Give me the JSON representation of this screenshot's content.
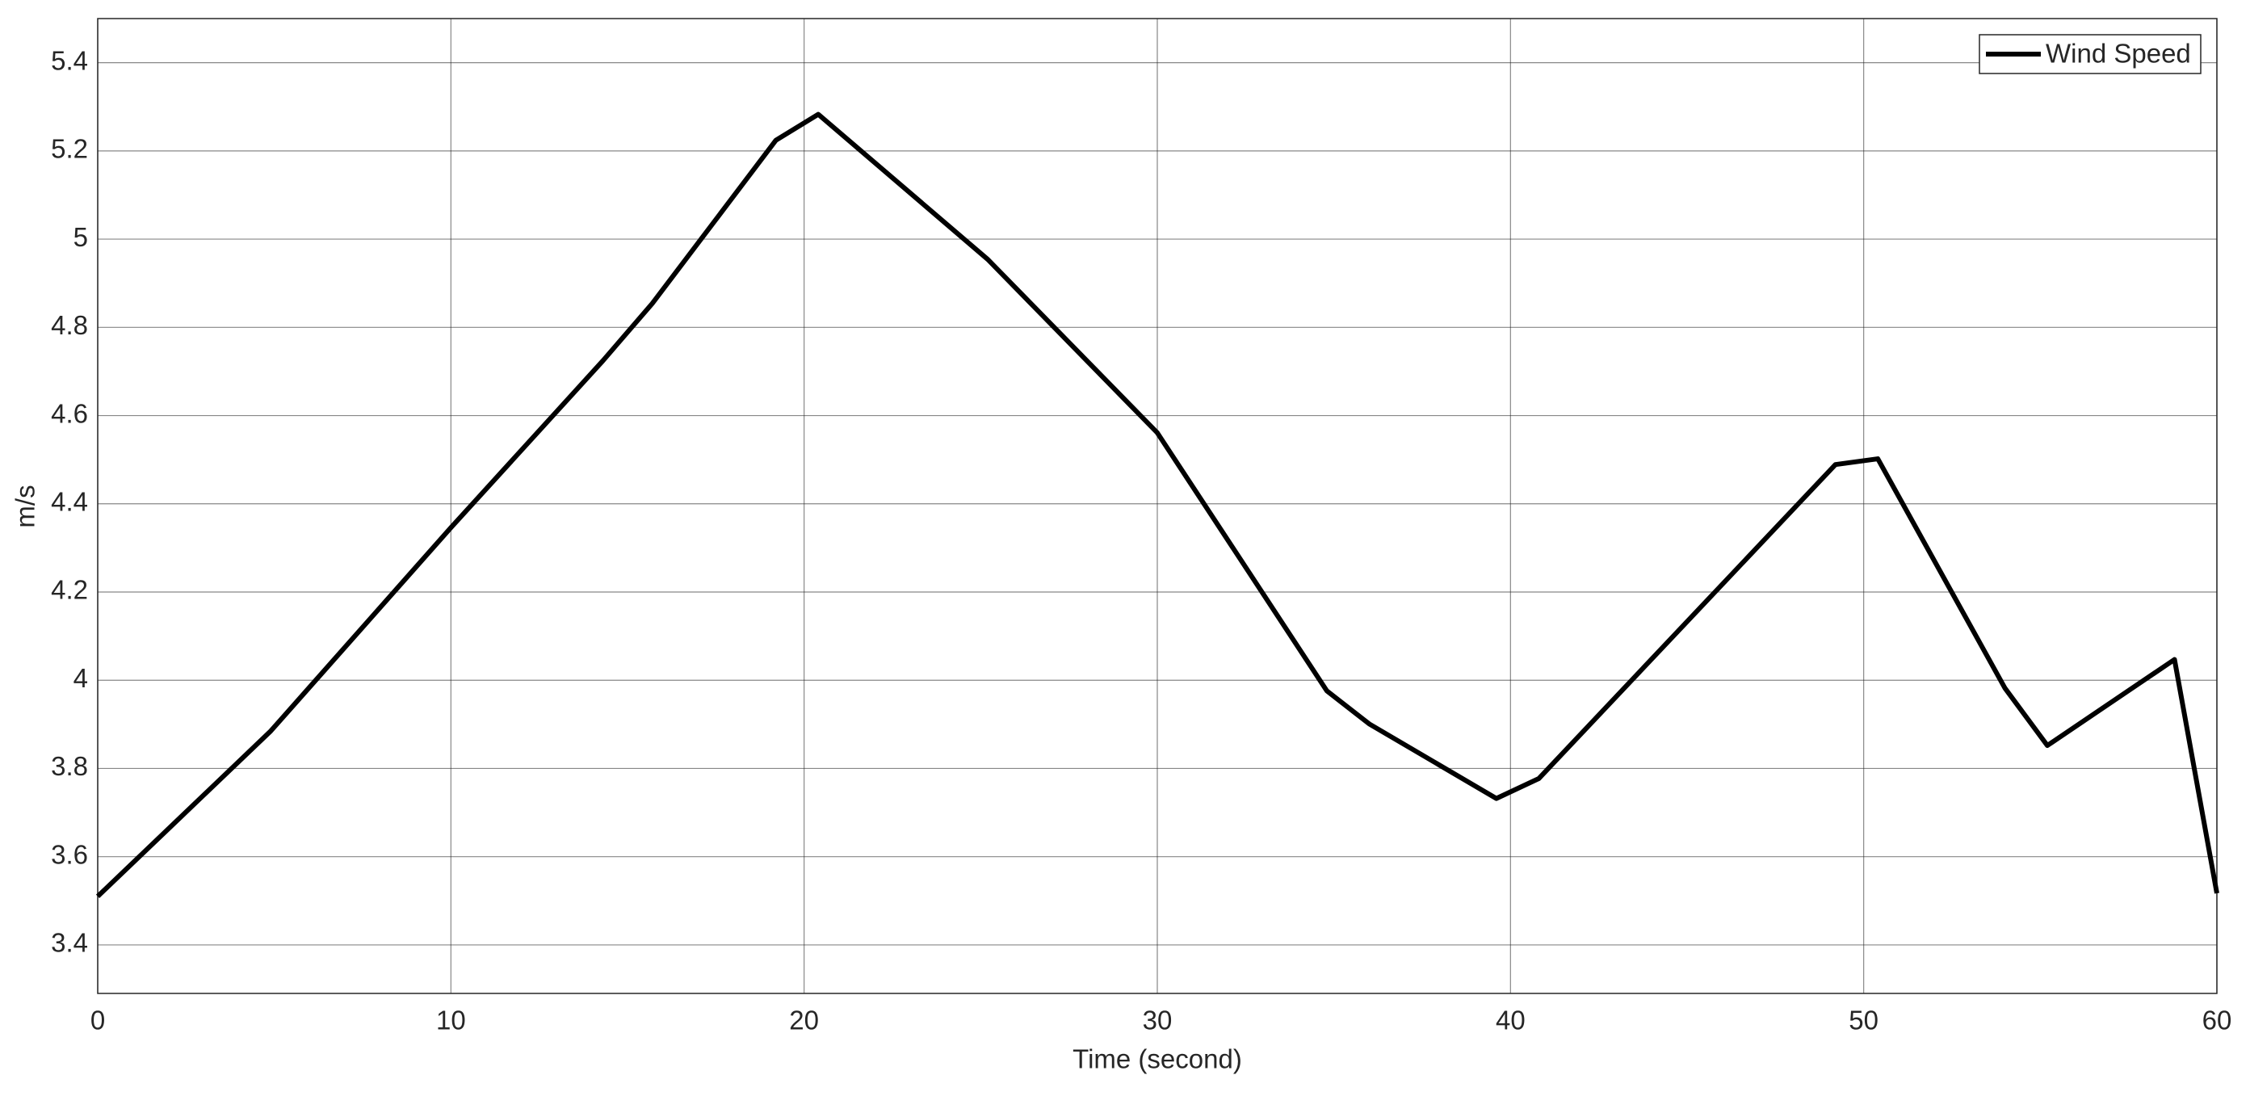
{
  "chart_data": {
    "type": "line",
    "x_label": "Time (second)",
    "y_label": "m/s",
    "x": [
      0,
      4.9,
      10,
      14.3,
      15.7,
      19.2,
      20.4,
      25.2,
      30,
      34.8,
      36,
      39.6,
      40.8,
      49.2,
      50.4,
      54,
      55.2,
      58.8,
      60
    ],
    "series": [
      {
        "name": "Wind Speed",
        "color": "#000000",
        "values": [
          3.51,
          3.885,
          4.346,
          4.724,
          4.854,
          5.224,
          5.283,
          4.954,
          4.561,
          3.976,
          3.901,
          3.732,
          3.777,
          4.489,
          4.502,
          3.982,
          3.852,
          4.047,
          3.517
        ]
      }
    ],
    "xlim": [
      0,
      60
    ],
    "xticks": [
      0,
      10,
      20,
      30,
      40,
      50,
      60
    ],
    "ylim": [
      3.29,
      5.5
    ],
    "yticks": [
      3.4,
      3.6,
      3.8,
      4,
      4.2,
      4.4,
      4.6,
      4.8,
      5,
      5.2,
      5.4
    ],
    "grid": true,
    "legend": "top-right"
  }
}
